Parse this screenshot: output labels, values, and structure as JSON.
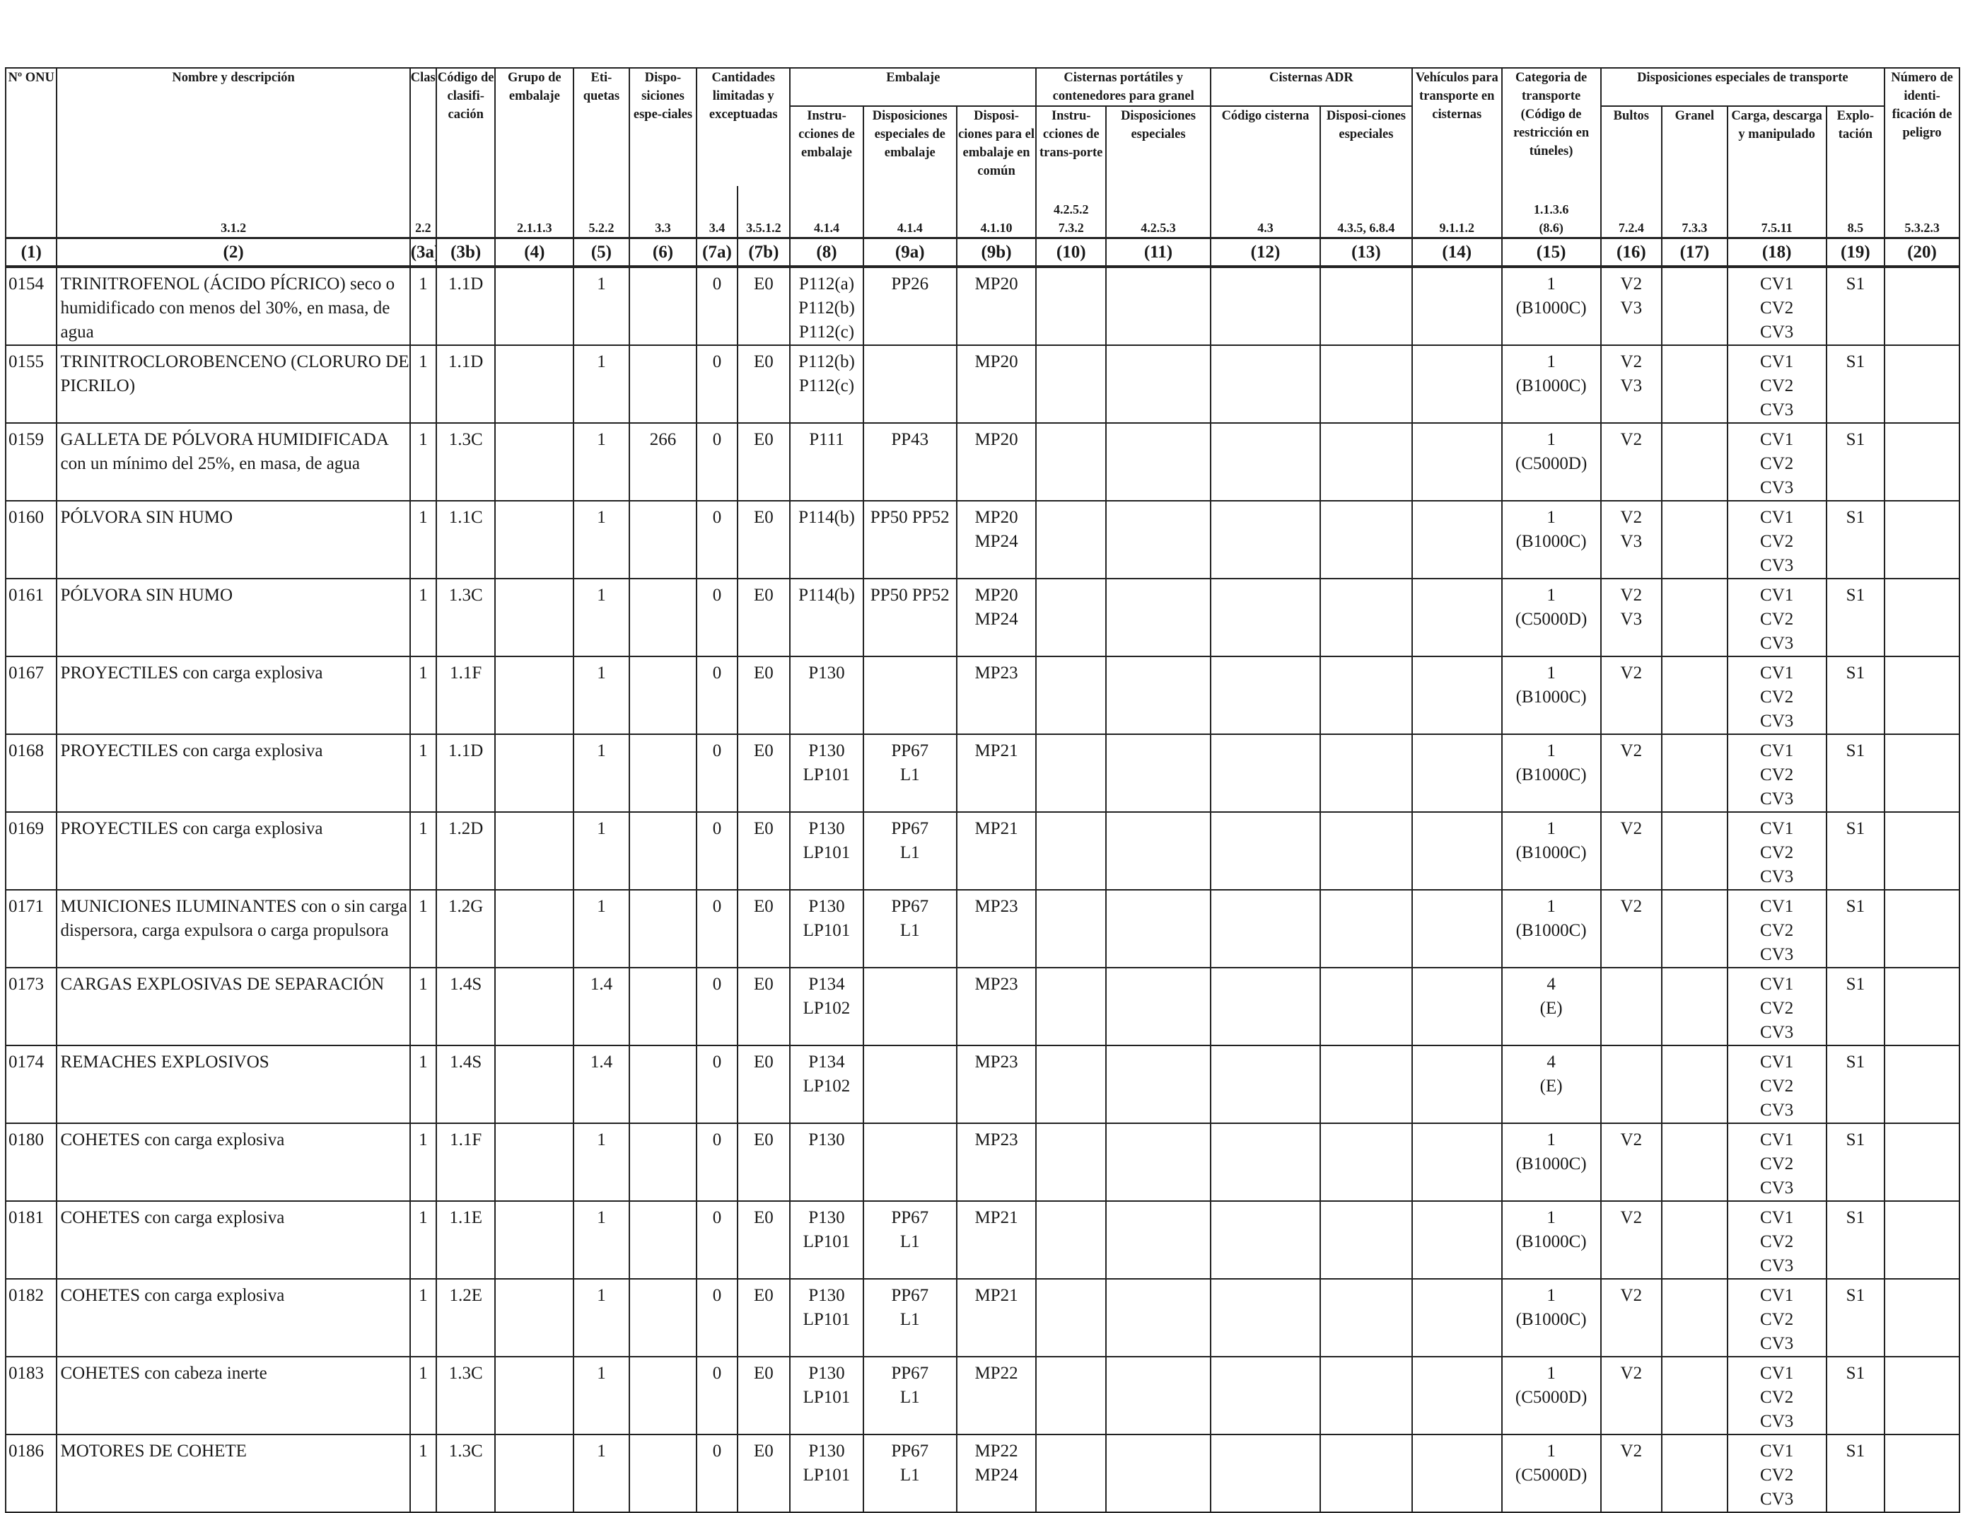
{
  "headers": {
    "onu": "Nº ONU",
    "nombre": "Nombre y descripción",
    "clase": "Clase",
    "codigo": "Código de clasifi-cación",
    "grupo": "Grupo de embalaje",
    "etiquetas": "Eti-quetas",
    "disposiciones": "Dispo-siciones espe-ciales",
    "cantidades": "Cantidades limitadas y exceptuadas",
    "embalaje": "Embalaje",
    "emb_instr": "Instru-cciones de embalaje",
    "emb_disp": "Disposiciones especiales de embalaje",
    "emb_comun": "Disposi-ciones para el embalaje en común",
    "cisternas_port": "Cisternas portátiles y contenedores para granel",
    "cp_instr": "Instru-cciones de trans-porte",
    "cp_disp": "Disposiciones especiales",
    "cisternas_adr": "Cisternas ADR",
    "adr_codigo": "Código cisterna",
    "adr_disp": "Disposi-ciones especiales",
    "vehiculos": "Vehículos para transporte en cisternas",
    "categoria": "Categoria de transporte (Código de restricción en túneles)",
    "disp_transporte": "Disposiciones especiales de transporte",
    "bultos": "Bultos",
    "granel": "Granel",
    "carga": "Carga, descarga y manipulado",
    "explotacion": "Explo-tación",
    "numero_id": "Número de identi-ficación de peligro"
  },
  "refs": {
    "r2": "3.1.2",
    "r3a": "2.2",
    "r4": "2.1.1.3",
    "r5": "5.2.2",
    "r6": "3.3",
    "r7a": "3.4",
    "r7b": "3.5.1.2",
    "r8": "4.1.4",
    "r9a": "4.1.4",
    "r9b": "4.1.10",
    "r10a": "4.2.5.2",
    "r10b": "7.3.2",
    "r11": "4.2.5.3",
    "r12": "4.3",
    "r13": "4.3.5, 6.8.4",
    "r14": "9.1.1.2",
    "r15a": "1.1.3.6",
    "r15b": "(8.6)",
    "r16": "7.2.4",
    "r17": "7.3.3",
    "r18": "7.5.11",
    "r19": "8.5",
    "r20": "5.3.2.3"
  },
  "colnums": [
    "(1)",
    "(2)",
    "(3a)",
    "(3b)",
    "(4)",
    "(5)",
    "(6)",
    "(7a)",
    "(7b)",
    "(8)",
    "(9a)",
    "(9b)",
    "(10)",
    "(11)",
    "(12)",
    "(13)",
    "(14)",
    "(15)",
    "(16)",
    "(17)",
    "(18)",
    "(19)",
    "(20)"
  ],
  "rows": [
    {
      "onu": "0154",
      "nombre": "TRINITROFENOL (ÁCIDO PÍCRICO) seco o humidificado con menos del 30%, en masa, de agua",
      "clase": "1",
      "codigo": "1.1D",
      "etiquetas": "1",
      "disp": "",
      "c7a": "0",
      "c7b": "E0",
      "emb_instr": [
        "P112(a)",
        "P112(b)",
        "P112(c)"
      ],
      "emb_disp": [
        "PP26"
      ],
      "emb_comun": [
        "MP20"
      ],
      "cat": "1",
      "tunel": "(B1000C)",
      "bultos": [
        "V2",
        "V3"
      ],
      "carga": [
        "CV1",
        "CV2",
        "CV3"
      ],
      "explot": "S1"
    },
    {
      "onu": "0155",
      "nombre": "TRINITROCLOROBENCENO (CLORURO DE PICRILO)",
      "clase": "1",
      "codigo": "1.1D",
      "etiquetas": "1",
      "disp": "",
      "c7a": "0",
      "c7b": "E0",
      "emb_instr": [
        "P112(b)",
        "P112(c)"
      ],
      "emb_disp": [],
      "emb_comun": [
        "MP20"
      ],
      "cat": "1",
      "tunel": "(B1000C)",
      "bultos": [
        "V2",
        "V3"
      ],
      "carga": [
        "CV1",
        "CV2",
        "CV3"
      ],
      "explot": "S1"
    },
    {
      "onu": "0159",
      "nombre": "GALLETA DE PÓLVORA HUMIDIFICADA con un mínimo del 25%, en masa, de agua",
      "clase": "1",
      "codigo": "1.3C",
      "etiquetas": "1",
      "disp": "266",
      "c7a": "0",
      "c7b": "E0",
      "emb_instr": [
        "P111"
      ],
      "emb_disp": [
        "PP43"
      ],
      "emb_comun": [
        "MP20"
      ],
      "cat": "1",
      "tunel": "(C5000D)",
      "bultos": [
        "V2"
      ],
      "carga": [
        "CV1",
        "CV2",
        "CV3"
      ],
      "explot": "S1"
    },
    {
      "onu": "0160",
      "nombre": "PÓLVORA SIN HUMO",
      "clase": "1",
      "codigo": "1.1C",
      "etiquetas": "1",
      "disp": "",
      "c7a": "0",
      "c7b": "E0",
      "emb_instr": [
        "P114(b)"
      ],
      "emb_disp": [
        "PP50 PP52"
      ],
      "emb_comun": [
        "MP20",
        "MP24"
      ],
      "cat": "1",
      "tunel": "(B1000C)",
      "bultos": [
        "V2",
        "V3"
      ],
      "carga": [
        "CV1",
        "CV2",
        "CV3"
      ],
      "explot": "S1"
    },
    {
      "onu": "0161",
      "nombre": "PÓLVORA SIN HUMO",
      "clase": "1",
      "codigo": "1.3C",
      "etiquetas": "1",
      "disp": "",
      "c7a": "0",
      "c7b": "E0",
      "emb_instr": [
        "P114(b)"
      ],
      "emb_disp": [
        "PP50 PP52"
      ],
      "emb_comun": [
        "MP20",
        "MP24"
      ],
      "cat": "1",
      "tunel": "(C5000D)",
      "bultos": [
        "V2",
        "V3"
      ],
      "carga": [
        "CV1",
        "CV2",
        "CV3"
      ],
      "explot": "S1"
    },
    {
      "onu": "0167",
      "nombre": "PROYECTILES con carga explosiva",
      "clase": "1",
      "codigo": "1.1F",
      "etiquetas": "1",
      "disp": "",
      "c7a": "0",
      "c7b": "E0",
      "emb_instr": [
        "P130"
      ],
      "emb_disp": [],
      "emb_comun": [
        "MP23"
      ],
      "cat": "1",
      "tunel": "(B1000C)",
      "bultos": [
        "V2"
      ],
      "carga": [
        "CV1",
        "CV2",
        "CV3"
      ],
      "explot": "S1"
    },
    {
      "onu": "0168",
      "nombre": "PROYECTILES con carga explosiva",
      "clase": "1",
      "codigo": "1.1D",
      "etiquetas": "1",
      "disp": "",
      "c7a": "0",
      "c7b": "E0",
      "emb_instr": [
        "P130",
        "LP101"
      ],
      "emb_disp": [
        "PP67",
        "L1"
      ],
      "emb_comun": [
        "MP21"
      ],
      "cat": "1",
      "tunel": "(B1000C)",
      "bultos": [
        "V2"
      ],
      "carga": [
        "CV1",
        "CV2",
        "CV3"
      ],
      "explot": "S1"
    },
    {
      "onu": "0169",
      "nombre": "PROYECTILES con carga explosiva",
      "clase": "1",
      "codigo": "1.2D",
      "etiquetas": "1",
      "disp": "",
      "c7a": "0",
      "c7b": "E0",
      "emb_instr": [
        "P130",
        "LP101"
      ],
      "emb_disp": [
        "PP67",
        "L1"
      ],
      "emb_comun": [
        "MP21"
      ],
      "cat": "1",
      "tunel": "(B1000C)",
      "bultos": [
        "V2"
      ],
      "carga": [
        "CV1",
        "CV2",
        "CV3"
      ],
      "explot": "S1"
    },
    {
      "onu": "0171",
      "nombre": "MUNICIONES ILUMINANTES con o sin carga dispersora, carga expulsora o carga propulsora",
      "clase": "1",
      "codigo": "1.2G",
      "etiquetas": "1",
      "disp": "",
      "c7a": "0",
      "c7b": "E0",
      "emb_instr": [
        "P130",
        "LP101"
      ],
      "emb_disp": [
        "PP67",
        "L1"
      ],
      "emb_comun": [
        "MP23"
      ],
      "cat": "1",
      "tunel": "(B1000C)",
      "bultos": [
        "V2"
      ],
      "carga": [
        "CV1",
        "CV2",
        "CV3"
      ],
      "explot": "S1"
    },
    {
      "onu": "0173",
      "nombre": "CARGAS EXPLOSIVAS DE SEPARACIÓN",
      "clase": "1",
      "codigo": "1.4S",
      "etiquetas": "1.4",
      "disp": "",
      "c7a": "0",
      "c7b": "E0",
      "emb_instr": [
        "P134",
        "LP102"
      ],
      "emb_disp": [],
      "emb_comun": [
        "MP23"
      ],
      "cat": "4",
      "tunel": "(E)",
      "bultos": [],
      "carga": [
        "CV1",
        "CV2",
        "CV3"
      ],
      "explot": "S1"
    },
    {
      "onu": "0174",
      "nombre": "REMACHES EXPLOSIVOS",
      "clase": "1",
      "codigo": "1.4S",
      "etiquetas": "1.4",
      "disp": "",
      "c7a": "0",
      "c7b": "E0",
      "emb_instr": [
        "P134",
        "LP102"
      ],
      "emb_disp": [],
      "emb_comun": [
        "MP23"
      ],
      "cat": "4",
      "tunel": "(E)",
      "bultos": [],
      "carga": [
        "CV1",
        "CV2",
        "CV3"
      ],
      "explot": "S1"
    },
    {
      "onu": "0180",
      "nombre": "COHETES con carga explosiva",
      "clase": "1",
      "codigo": "1.1F",
      "etiquetas": "1",
      "disp": "",
      "c7a": "0",
      "c7b": "E0",
      "emb_instr": [
        "P130"
      ],
      "emb_disp": [],
      "emb_comun": [
        "MP23"
      ],
      "cat": "1",
      "tunel": "(B1000C)",
      "bultos": [
        "V2"
      ],
      "carga": [
        "CV1",
        "CV2",
        "CV3"
      ],
      "explot": "S1"
    },
    {
      "onu": "0181",
      "nombre": "COHETES con carga explosiva",
      "clase": "1",
      "codigo": "1.1E",
      "etiquetas": "1",
      "disp": "",
      "c7a": "0",
      "c7b": "E0",
      "emb_instr": [
        "P130",
        "LP101"
      ],
      "emb_disp": [
        "PP67",
        "L1"
      ],
      "emb_comun": [
        "MP21"
      ],
      "cat": "1",
      "tunel": "(B1000C)",
      "bultos": [
        "V2"
      ],
      "carga": [
        "CV1",
        "CV2",
        "CV3"
      ],
      "explot": "S1"
    },
    {
      "onu": "0182",
      "nombre": "COHETES con carga explosiva",
      "clase": "1",
      "codigo": "1.2E",
      "etiquetas": "1",
      "disp": "",
      "c7a": "0",
      "c7b": "E0",
      "emb_instr": [
        "P130",
        "LP101"
      ],
      "emb_disp": [
        "PP67",
        "L1"
      ],
      "emb_comun": [
        "MP21"
      ],
      "cat": "1",
      "tunel": "(B1000C)",
      "bultos": [
        "V2"
      ],
      "carga": [
        "CV1",
        "CV2",
        "CV3"
      ],
      "explot": "S1"
    },
    {
      "onu": "0183",
      "nombre": "COHETES con cabeza inerte",
      "clase": "1",
      "codigo": "1.3C",
      "etiquetas": "1",
      "disp": "",
      "c7a": "0",
      "c7b": "E0",
      "emb_instr": [
        "P130",
        "LP101"
      ],
      "emb_disp": [
        "PP67",
        "L1"
      ],
      "emb_comun": [
        "MP22"
      ],
      "cat": "1",
      "tunel": "(C5000D)",
      "bultos": [
        "V2"
      ],
      "carga": [
        "CV1",
        "CV2",
        "CV3"
      ],
      "explot": "S1"
    },
    {
      "onu": "0186",
      "nombre": "MOTORES DE COHETE",
      "clase": "1",
      "codigo": "1.3C",
      "etiquetas": "1",
      "disp": "",
      "c7a": "0",
      "c7b": "E0",
      "emb_instr": [
        "P130",
        "LP101"
      ],
      "emb_disp": [
        "PP67",
        "L1"
      ],
      "emb_comun": [
        "MP22",
        "MP24"
      ],
      "cat": "1",
      "tunel": "(C5000D)",
      "bultos": [
        "V2"
      ],
      "carga": [
        "CV1",
        "CV2",
        "CV3"
      ],
      "explot": "S1"
    }
  ]
}
